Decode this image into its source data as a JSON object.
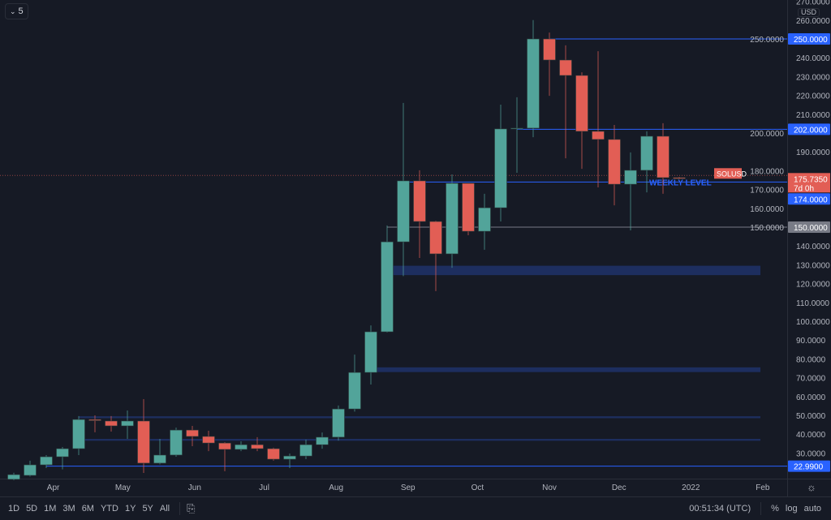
{
  "header": {
    "interval": "5",
    "currency": "USD"
  },
  "symbol": "SOLUSD",
  "countdown": "7d 0h",
  "colors": {
    "background": "#161a25",
    "up": "#52a49a",
    "down": "#e25e55",
    "level_blue": "#2962ff",
    "zone": "#1e3166",
    "grey_level": "#787b86"
  },
  "chart_data": {
    "type": "candlestick",
    "interval": "weekly",
    "ylim": [
      20,
      270
    ],
    "yticks": [
      30,
      40,
      50,
      60,
      70,
      80,
      90,
      100,
      110,
      120,
      130,
      140,
      150,
      160,
      170,
      180,
      190,
      200,
      210,
      220,
      230,
      240,
      250,
      260,
      270
    ],
    "xticks": [
      {
        "label": "Apr",
        "date": "2021-04-01"
      },
      {
        "label": "May",
        "date": "2021-05-01"
      },
      {
        "label": "Jun",
        "date": "2021-06-01"
      },
      {
        "label": "Jul",
        "date": "2021-07-01"
      },
      {
        "label": "Aug",
        "date": "2021-08-01"
      },
      {
        "label": "Sep",
        "date": "2021-09-01"
      },
      {
        "label": "Oct",
        "date": "2021-10-01"
      },
      {
        "label": "Nov",
        "date": "2021-11-01"
      },
      {
        "label": "Dec",
        "date": "2021-12-01"
      },
      {
        "label": "2022",
        "date": "2022-01-01"
      },
      {
        "label": "Feb",
        "date": "2022-02-01"
      }
    ],
    "candles": [
      [
        "2021-03-15",
        16,
        19.5,
        15.5,
        18.5
      ],
      [
        "2021-03-22",
        18.1,
        25.9,
        17.5,
        23.7
      ],
      [
        "2021-03-29",
        23.7,
        28.9,
        22,
        28
      ],
      [
        "2021-04-05",
        28,
        33.2,
        21.3,
        32.3
      ],
      [
        "2021-04-12",
        32.3,
        49.6,
        28.9,
        47.8
      ],
      [
        "2021-04-19",
        47.8,
        50,
        41,
        47.2
      ],
      [
        "2021-04-26",
        47,
        49.6,
        41.4,
        44.4
      ],
      [
        "2021-05-03",
        44.4,
        52.6,
        37.5,
        47
      ],
      [
        "2021-05-10",
        47,
        58.6,
        19.4,
        24.6
      ],
      [
        "2021-05-17",
        24.6,
        37.5,
        24,
        28.9
      ],
      [
        "2021-05-24",
        28.9,
        43.5,
        28,
        42.2
      ],
      [
        "2021-05-31",
        42.2,
        44.4,
        33.6,
        38.8
      ],
      [
        "2021-06-07",
        38.8,
        41.8,
        31,
        35.3
      ],
      [
        "2021-06-14",
        35.3,
        35.8,
        20.3,
        31.9
      ],
      [
        "2021-06-21",
        31.9,
        36.2,
        31,
        34.4
      ],
      [
        "2021-06-28",
        34.4,
        38.4,
        31,
        32.3
      ],
      [
        "2021-07-05",
        32.3,
        32.8,
        25.9,
        26.7
      ],
      [
        "2021-07-12",
        26.7,
        29.7,
        22,
        28.4
      ],
      [
        "2021-07-19",
        28.4,
        37.1,
        26.7,
        34.4
      ],
      [
        "2021-07-26",
        34.4,
        40.9,
        32.3,
        38.4
      ],
      [
        "2021-08-02",
        38.4,
        55.2,
        36.6,
        53.4
      ],
      [
        "2021-08-09",
        53.4,
        82.3,
        52,
        72.8
      ],
      [
        "2021-08-16",
        72.8,
        97.8,
        66.4,
        94.4
      ],
      [
        "2021-08-23",
        94.4,
        150.9,
        94,
        142.2
      ],
      [
        "2021-08-30",
        142.2,
        216,
        124,
        174.6
      ],
      [
        "2021-09-06",
        174.6,
        180.2,
        133.6,
        153
      ],
      [
        "2021-09-13",
        153,
        153.4,
        116,
        135.8
      ],
      [
        "2021-09-20",
        135.8,
        178,
        128.4,
        173.3
      ],
      [
        "2021-09-27",
        173.3,
        173.3,
        145.7,
        147.8
      ],
      [
        "2021-10-04",
        147.8,
        167.7,
        138,
        160.3
      ],
      [
        "2021-10-11",
        160.3,
        215.1,
        153,
        202.2
      ],
      [
        "2021-10-18",
        202.2,
        219,
        178.9,
        202.6
      ],
      [
        "2021-10-25",
        202.6,
        260,
        197.8,
        250
      ],
      [
        "2021-11-01",
        250,
        253.4,
        219.8,
        238.8
      ],
      [
        "2021-11-08",
        238.8,
        246.6,
        186.6,
        230.6
      ],
      [
        "2021-11-15",
        230.6,
        232.3,
        181,
        200.9
      ],
      [
        "2021-11-22",
        200.9,
        243.5,
        171.1,
        196.6
      ],
      [
        "2021-11-29",
        196.6,
        204.3,
        161.6,
        172.8
      ],
      [
        "2021-12-06",
        172.8,
        189.7,
        148.3,
        180.2
      ],
      [
        "2021-12-13",
        180.2,
        200.9,
        168.5,
        198.3
      ],
      [
        "2021-12-20",
        198.3,
        205.2,
        167.7,
        176.3
      ],
      [
        "2021-12-27",
        176.3,
        176.7,
        175.4,
        175.735
      ]
    ],
    "levels": [
      {
        "price": 250,
        "label": "250.0000",
        "color": "#2962ff",
        "from": "2021-11-01"
      },
      {
        "price": 202,
        "label": "202.0000",
        "color": "#2962ff",
        "from": "2021-10-18"
      },
      {
        "price": 174,
        "label": "174.0000",
        "color": "#2962ff",
        "from": "2021-08-30",
        "text": "WEEKLY LEVEL"
      },
      {
        "price": 150,
        "label": "150.0000",
        "color": "#787b86",
        "from": "2021-08-23"
      },
      {
        "price": 22.99,
        "label": "22.9900",
        "color": "#2962ff",
        "from": "2021-03-29"
      }
    ],
    "zones": [
      {
        "low": 124.5,
        "high": 129.5,
        "from": "2021-08-23",
        "to": "2022-01-31"
      },
      {
        "low": 73,
        "high": 75.5,
        "from": "2021-08-16",
        "to": "2022-01-31"
      },
      {
        "low": 48.5,
        "high": 49.5,
        "from": "2021-04-12",
        "to": "2022-01-31"
      },
      {
        "low": 36.5,
        "high": 37.5,
        "from": "2021-04-12",
        "to": "2022-01-31"
      }
    ],
    "last_price": {
      "price": 175.735,
      "label": "175.7350"
    }
  },
  "bottom": {
    "ranges": [
      "1D",
      "5D",
      "1M",
      "3M",
      "6M",
      "YTD",
      "1Y",
      "5Y",
      "All"
    ],
    "time": "00:51:34 (UTC)",
    "percent": "%",
    "log": "log",
    "auto": "auto"
  }
}
